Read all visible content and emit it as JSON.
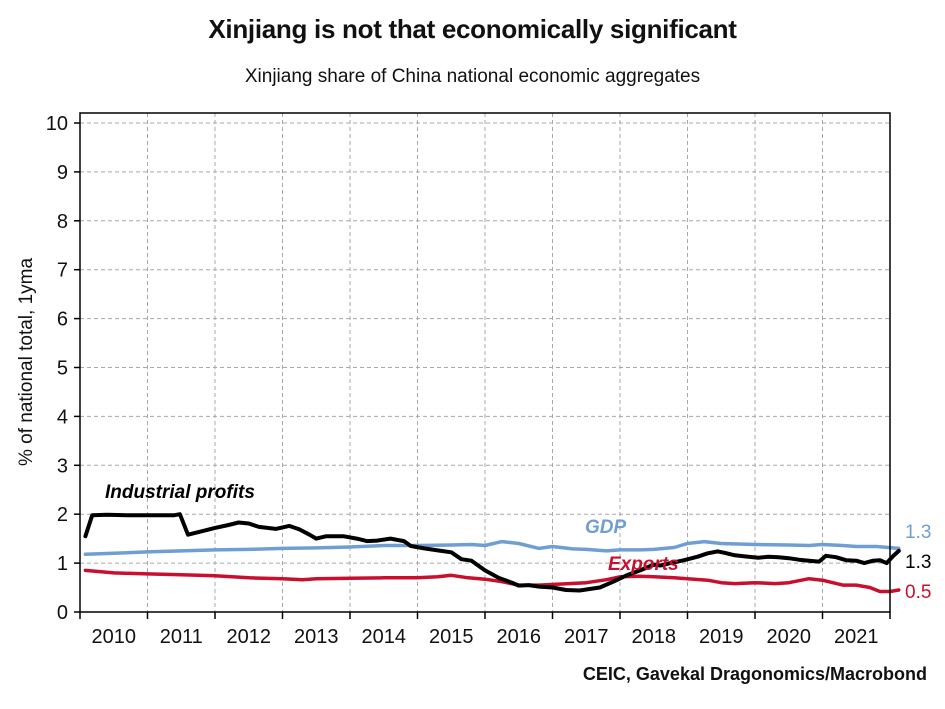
{
  "title": "Xinjiang is not that economically significant",
  "subtitle": "Xinjiang share of China national economic aggregates",
  "source": "CEIC, Gavekal Dragonomics/Macrobond",
  "chart_data": {
    "type": "line",
    "ylabel": "% of national total, 1yma",
    "ylim": [
      0,
      10
    ],
    "yticks": [
      "0",
      "1",
      "2",
      "3",
      "4",
      "5",
      "6",
      "7",
      "8",
      "9",
      "10"
    ],
    "xlim": [
      2009.5,
      2021.5
    ],
    "xticks": [
      "2010",
      "2011",
      "2012",
      "2013",
      "2014",
      "2015",
      "2016",
      "2017",
      "2018",
      "2019",
      "2020",
      "2021"
    ],
    "grid": true,
    "series": [
      {
        "name": "Industrial profits",
        "color": "#000000",
        "end_label": "1.3",
        "points": [
          [
            2009.58,
            1.55
          ],
          [
            2009.68,
            1.98
          ],
          [
            2009.9,
            1.99
          ],
          [
            2010.2,
            1.98
          ],
          [
            2010.45,
            1.98
          ],
          [
            2010.9,
            1.98
          ],
          [
            2010.98,
            2.0
          ],
          [
            2011.1,
            1.58
          ],
          [
            2011.3,
            1.65
          ],
          [
            2011.5,
            1.72
          ],
          [
            2011.7,
            1.78
          ],
          [
            2011.85,
            1.83
          ],
          [
            2012.0,
            1.81
          ],
          [
            2012.15,
            1.74
          ],
          [
            2012.4,
            1.7
          ],
          [
            2012.6,
            1.76
          ],
          [
            2012.75,
            1.69
          ],
          [
            2012.9,
            1.58
          ],
          [
            2013.0,
            1.5
          ],
          [
            2013.15,
            1.55
          ],
          [
            2013.4,
            1.55
          ],
          [
            2013.6,
            1.5
          ],
          [
            2013.75,
            1.45
          ],
          [
            2013.9,
            1.46
          ],
          [
            2014.1,
            1.5
          ],
          [
            2014.3,
            1.45
          ],
          [
            2014.4,
            1.35
          ],
          [
            2014.6,
            1.3
          ],
          [
            2014.8,
            1.26
          ],
          [
            2015.0,
            1.22
          ],
          [
            2015.15,
            1.08
          ],
          [
            2015.3,
            1.05
          ],
          [
            2015.5,
            0.85
          ],
          [
            2015.7,
            0.7
          ],
          [
            2015.9,
            0.6
          ],
          [
            2016.0,
            0.54
          ],
          [
            2016.15,
            0.55
          ],
          [
            2016.3,
            0.52
          ],
          [
            2016.5,
            0.5
          ],
          [
            2016.7,
            0.45
          ],
          [
            2016.9,
            0.44
          ],
          [
            2017.05,
            0.47
          ],
          [
            2017.2,
            0.5
          ],
          [
            2017.4,
            0.62
          ],
          [
            2017.6,
            0.75
          ],
          [
            2017.8,
            0.85
          ],
          [
            2018.0,
            0.97
          ],
          [
            2018.1,
            0.95
          ],
          [
            2018.25,
            1.0
          ],
          [
            2018.45,
            1.06
          ],
          [
            2018.65,
            1.13
          ],
          [
            2018.8,
            1.2
          ],
          [
            2018.95,
            1.24
          ],
          [
            2019.05,
            1.21
          ],
          [
            2019.2,
            1.16
          ],
          [
            2019.4,
            1.13
          ],
          [
            2019.55,
            1.11
          ],
          [
            2019.7,
            1.13
          ],
          [
            2019.85,
            1.12
          ],
          [
            2020.0,
            1.1
          ],
          [
            2020.15,
            1.07
          ],
          [
            2020.3,
            1.05
          ],
          [
            2020.45,
            1.03
          ],
          [
            2020.55,
            1.15
          ],
          [
            2020.7,
            1.12
          ],
          [
            2020.85,
            1.06
          ],
          [
            2021.0,
            1.05
          ],
          [
            2021.12,
            1.0
          ],
          [
            2021.25,
            1.05
          ],
          [
            2021.35,
            1.06
          ],
          [
            2021.45,
            1.0
          ],
          [
            2021.55,
            1.15
          ],
          [
            2021.63,
            1.25
          ]
        ]
      },
      {
        "name": "GDP",
        "color": "#6f9fd2",
        "end_label": "1.3",
        "points": [
          [
            2009.58,
            1.18
          ],
          [
            2010.0,
            1.2
          ],
          [
            2010.5,
            1.23
          ],
          [
            2011.0,
            1.25
          ],
          [
            2011.5,
            1.27
          ],
          [
            2012.0,
            1.28
          ],
          [
            2012.5,
            1.3
          ],
          [
            2013.0,
            1.31
          ],
          [
            2013.5,
            1.33
          ],
          [
            2014.0,
            1.36
          ],
          [
            2014.5,
            1.36
          ],
          [
            2015.0,
            1.37
          ],
          [
            2015.3,
            1.38
          ],
          [
            2015.5,
            1.36
          ],
          [
            2015.75,
            1.44
          ],
          [
            2016.0,
            1.4
          ],
          [
            2016.3,
            1.3
          ],
          [
            2016.5,
            1.34
          ],
          [
            2016.8,
            1.29
          ],
          [
            2017.0,
            1.28
          ],
          [
            2017.3,
            1.25
          ],
          [
            2017.5,
            1.27
          ],
          [
            2017.8,
            1.27
          ],
          [
            2018.0,
            1.28
          ],
          [
            2018.3,
            1.32
          ],
          [
            2018.5,
            1.4
          ],
          [
            2018.75,
            1.44
          ],
          [
            2019.0,
            1.4
          ],
          [
            2019.5,
            1.38
          ],
          [
            2020.0,
            1.37
          ],
          [
            2020.3,
            1.36
          ],
          [
            2020.5,
            1.38
          ],
          [
            2020.8,
            1.36
          ],
          [
            2021.0,
            1.34
          ],
          [
            2021.3,
            1.34
          ],
          [
            2021.63,
            1.3
          ]
        ]
      },
      {
        "name": "Exports",
        "color": "#c8102e",
        "end_label": "0.5",
        "points": [
          [
            2009.58,
            0.85
          ],
          [
            2010.0,
            0.8
          ],
          [
            2010.5,
            0.78
          ],
          [
            2011.0,
            0.76
          ],
          [
            2011.5,
            0.74
          ],
          [
            2012.0,
            0.7
          ],
          [
            2012.5,
            0.68
          ],
          [
            2012.8,
            0.66
          ],
          [
            2013.0,
            0.68
          ],
          [
            2013.5,
            0.69
          ],
          [
            2014.0,
            0.7
          ],
          [
            2014.5,
            0.7
          ],
          [
            2014.8,
            0.72
          ],
          [
            2015.0,
            0.75
          ],
          [
            2015.25,
            0.7
          ],
          [
            2015.5,
            0.67
          ],
          [
            2015.75,
            0.62
          ],
          [
            2016.0,
            0.55
          ],
          [
            2016.3,
            0.55
          ],
          [
            2016.6,
            0.57
          ],
          [
            2017.0,
            0.6
          ],
          [
            2017.3,
            0.66
          ],
          [
            2017.5,
            0.72
          ],
          [
            2017.8,
            0.73
          ],
          [
            2018.0,
            0.72
          ],
          [
            2018.3,
            0.7
          ],
          [
            2018.5,
            0.68
          ],
          [
            2018.8,
            0.65
          ],
          [
            2019.0,
            0.6
          ],
          [
            2019.2,
            0.58
          ],
          [
            2019.5,
            0.6
          ],
          [
            2019.8,
            0.58
          ],
          [
            2020.0,
            0.6
          ],
          [
            2020.3,
            0.68
          ],
          [
            2020.5,
            0.65
          ],
          [
            2020.8,
            0.55
          ],
          [
            2021.0,
            0.55
          ],
          [
            2021.2,
            0.5
          ],
          [
            2021.35,
            0.42
          ],
          [
            2021.5,
            0.42
          ],
          [
            2021.63,
            0.45
          ]
        ]
      }
    ],
    "annotations": [
      {
        "text": "Industrial profits",
        "series": "Industrial profits"
      },
      {
        "text": "GDP",
        "series": "GDP"
      },
      {
        "text": "Exports",
        "series": "Exports"
      }
    ]
  }
}
